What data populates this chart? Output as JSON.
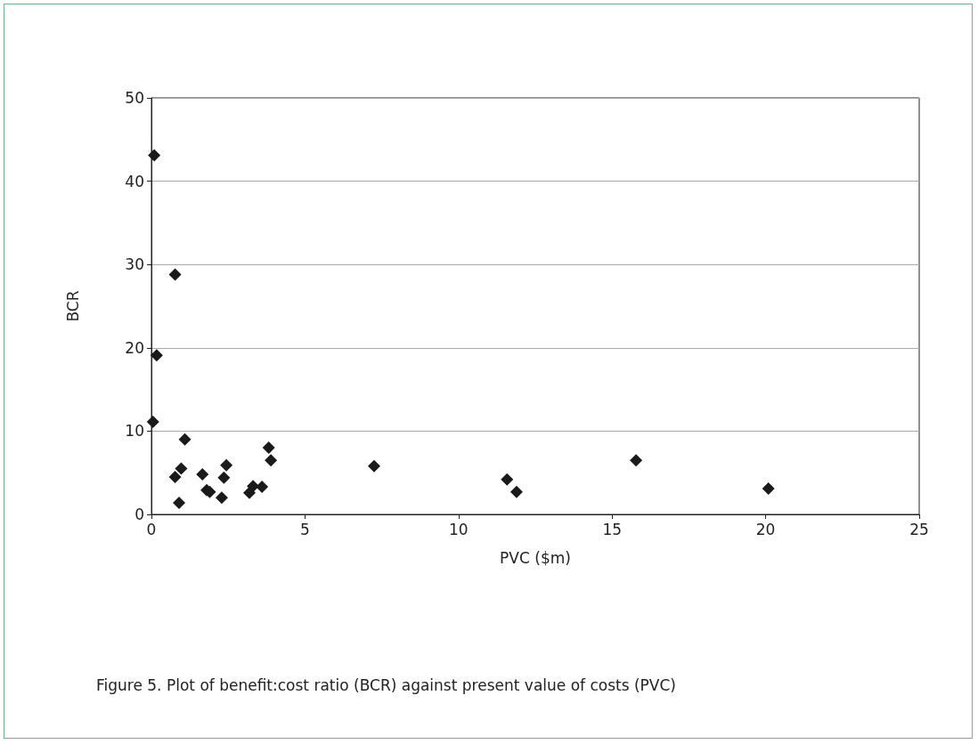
{
  "chart_data": {
    "type": "scatter",
    "title": "Figure 5.  Plot of benefit:cost ratio (BCR) against present value of costs (PVC)",
    "xlabel": "PVC ($m)",
    "ylabel": "BCR",
    "x": [
      0.09,
      0.77,
      0.17,
      0.05,
      1.09,
      0.97,
      0.77,
      0.9,
      1.66,
      1.8,
      1.9,
      2.29,
      2.36,
      2.44,
      3.19,
      3.31,
      3.6,
      3.82,
      3.89,
      7.25,
      11.58,
      11.89,
      15.78,
      20.09
    ],
    "values": [
      43.1,
      28.8,
      19.1,
      11.1,
      9.0,
      5.5,
      4.5,
      1.4,
      4.8,
      2.9,
      2.7,
      2.0,
      4.4,
      5.9,
      2.6,
      3.4,
      3.3,
      8.0,
      6.5,
      5.8,
      4.2,
      2.7,
      6.5,
      3.1
    ],
    "color": "#1a1a1a",
    "marker": "diamond",
    "xlim": [
      0,
      25
    ],
    "xticks": [
      0,
      5,
      10,
      15,
      20,
      25
    ],
    "ylim": [
      0,
      50
    ],
    "yticks": [
      0,
      10,
      20,
      30,
      40,
      50
    ],
    "grid": "y"
  }
}
